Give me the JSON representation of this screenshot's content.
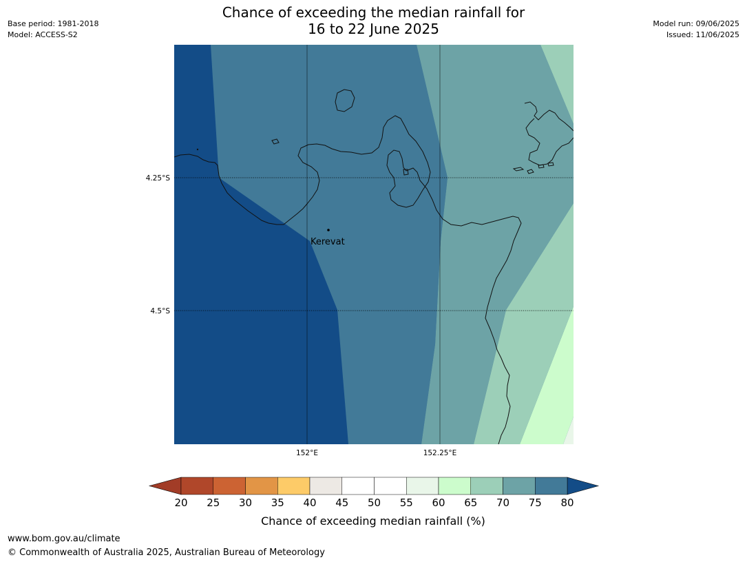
{
  "title": {
    "line1": "Chance of exceeding the median rainfall for",
    "line2": "16 to 22 June 2025"
  },
  "meta_left": {
    "base_period": "Base period: 1981-2018",
    "model": "Model: ACCESS-S2"
  },
  "meta_right": {
    "model_run": "Model run: 09/06/2025",
    "issued": "Issued: 11/06/2025"
  },
  "map": {
    "lat_labels": [
      "4.25°S",
      "4.5°S"
    ],
    "lon_labels": [
      "152°E",
      "152.25°E"
    ],
    "place": "Kerevat"
  },
  "legend": {
    "label": "Chance of exceeding median rainfall (%)",
    "ticks": [
      "20",
      "25",
      "30",
      "35",
      "40",
      "45",
      "50",
      "55",
      "60",
      "65",
      "70",
      "75",
      "80"
    ],
    "colors": [
      "#b0472a",
      "#cc6333",
      "#e29546",
      "#fdcb68",
      "#ede9e4",
      "#ffffff",
      "#ffffff",
      "#e9f6e9",
      "#ccfccc",
      "#9ccfb8",
      "#6da3a6",
      "#427a98"
    ],
    "under_color": "#a23c27",
    "over_color": "#134c87"
  },
  "footer": {
    "url": "www.bom.gov.au/climate",
    "copyright": "© Commonwealth of Australia 2025, Australian Bureau of Meteorology"
  }
}
